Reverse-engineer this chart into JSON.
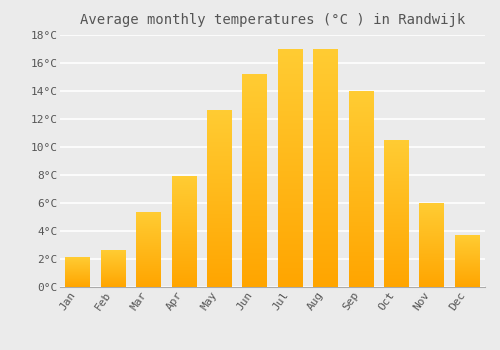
{
  "title": "Average monthly temperatures (°C ) in Randwijk",
  "months": [
    "Jan",
    "Feb",
    "Mar",
    "Apr",
    "May",
    "Jun",
    "Jul",
    "Aug",
    "Sep",
    "Oct",
    "Nov",
    "Dec"
  ],
  "values": [
    2.1,
    2.6,
    5.3,
    7.9,
    12.6,
    15.2,
    17.0,
    17.0,
    14.0,
    10.5,
    6.0,
    3.7
  ],
  "bar_color_top": "#FFCC33",
  "bar_color_bottom": "#FFA500",
  "ylim": [
    0,
    18
  ],
  "yticks": [
    0,
    2,
    4,
    6,
    8,
    10,
    12,
    14,
    16,
    18
  ],
  "ytick_labels": [
    "0°C",
    "2°C",
    "4°C",
    "6°C",
    "8°C",
    "10°C",
    "12°C",
    "14°C",
    "16°C",
    "18°C"
  ],
  "background_color": "#ebebeb",
  "grid_color": "#ffffff",
  "title_fontsize": 10,
  "tick_fontsize": 8,
  "tick_color": "#555555",
  "bar_edge_color": "none",
  "figsize": [
    5.0,
    3.5
  ],
  "dpi": 100
}
